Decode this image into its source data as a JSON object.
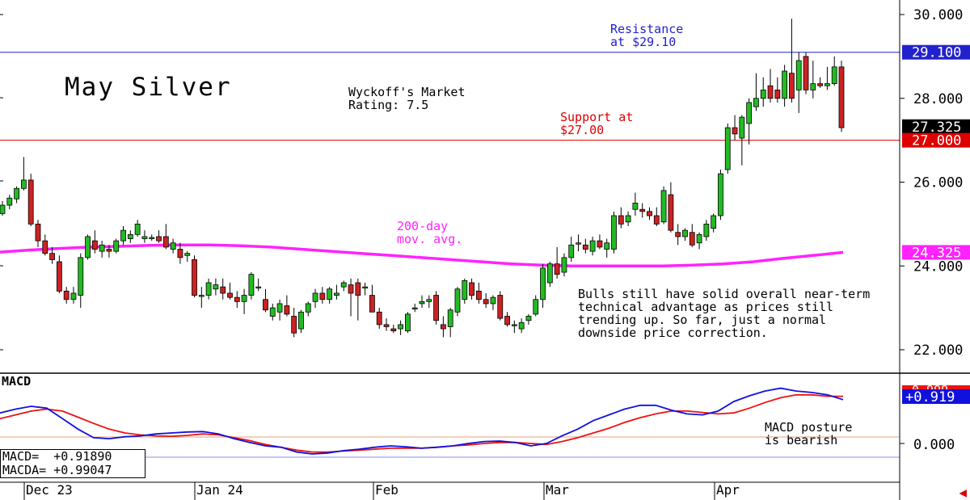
{
  "chart_title": "May Silver",
  "rating_text": "Wyckoff's Market\nRating: 7.5",
  "annotations": {
    "resistance": "Resistance\nat $29.10",
    "support": "Support at\n$27.00",
    "moving_average": "200-day\nmov. avg.",
    "commentary": "Bulls still have solid overall near-term\ntechnical advantage as prices still\ntrending up. So far, just a normal\ndownside price correction.",
    "macd_comment": "MACD posture\nis bearish"
  },
  "macd_panel": {
    "title": "MACD",
    "macd_label": "MACD=  +0.91890",
    "macda_label": "MACDA= +0.99047",
    "axis_tick": "0.000",
    "hidden_tick": "0.999",
    "badge_value": "+0.919"
  },
  "price_badges": {
    "resistance": "29.100",
    "last": "27.325",
    "support": "27.000",
    "moving_average": "24.325"
  },
  "colors": {
    "up_candle": "#22bb22",
    "down_candle": "#cc2222",
    "resistance_line": "#2222cc",
    "support_line": "#dd0000",
    "moving_average": "#ff22ff",
    "macd_line": "#1111dd",
    "macda_line": "#ee1111",
    "last_price_badge": "#000000"
  },
  "chart_data": [
    {
      "type": "candlestick",
      "title": "May Silver",
      "y_ticks": [
        "30.000",
        "28.000",
        "26.000",
        "24.000",
        "22.000"
      ],
      "ylim": [
        21.6,
        30.2
      ],
      "x_ticks": [
        "Dec 23",
        "Jan 24",
        "Feb",
        "Mar",
        "Apr"
      ],
      "resistance": 29.1,
      "support": 27.0,
      "last": 27.325,
      "moving_average": {
        "name": "200-day mov. avg.",
        "values": [
          24.33,
          24.38,
          24.42,
          24.45,
          24.47,
          24.49,
          24.5,
          24.5,
          24.48,
          24.45,
          24.4,
          24.35,
          24.3,
          24.25,
          24.2,
          24.15,
          24.1,
          24.05,
          24.02,
          24.0,
          24.0,
          24.0,
          24.0,
          24.02,
          24.05,
          24.1,
          24.18,
          24.25,
          24.325
        ]
      },
      "ohlc": [
        [
          25.25,
          25.55,
          25.2,
          25.45
        ],
        [
          25.45,
          25.7,
          25.35,
          25.62
        ],
        [
          25.6,
          25.9,
          25.5,
          25.85
        ],
        [
          25.85,
          26.6,
          25.8,
          26.05
        ],
        [
          26.05,
          26.2,
          24.95,
          25.0
        ],
        [
          25.0,
          25.1,
          24.45,
          24.6
        ],
        [
          24.6,
          24.75,
          24.25,
          24.3
        ],
        [
          24.3,
          24.45,
          24.05,
          24.15
        ],
        [
          24.1,
          24.25,
          23.35,
          23.4
        ],
        [
          23.4,
          23.5,
          23.1,
          23.2
        ],
        [
          23.2,
          23.5,
          23.1,
          23.35
        ],
        [
          23.3,
          24.3,
          23.0,
          24.2
        ],
        [
          24.2,
          24.75,
          24.15,
          24.7
        ],
        [
          24.6,
          24.85,
          24.3,
          24.4
        ],
        [
          24.35,
          24.6,
          24.2,
          24.5
        ],
        [
          24.4,
          24.5,
          24.2,
          24.35
        ],
        [
          24.35,
          24.65,
          24.3,
          24.6
        ],
        [
          24.6,
          24.95,
          24.5,
          24.85
        ],
        [
          24.65,
          24.85,
          24.55,
          24.75
        ],
        [
          24.75,
          25.1,
          24.7,
          25.0
        ],
        [
          24.65,
          24.85,
          24.55,
          24.7
        ],
        [
          24.65,
          24.75,
          24.6,
          24.68
        ],
        [
          24.7,
          24.85,
          24.55,
          24.6
        ],
        [
          24.7,
          25.0,
          24.4,
          24.45
        ],
        [
          24.4,
          24.65,
          24.3,
          24.55
        ],
        [
          24.4,
          24.55,
          24.05,
          24.2
        ],
        [
          24.25,
          24.35,
          24.1,
          24.3
        ],
        [
          24.15,
          24.25,
          23.25,
          23.3
        ],
        [
          23.3,
          23.5,
          23.0,
          23.3
        ],
        [
          23.3,
          23.7,
          23.2,
          23.6
        ],
        [
          23.45,
          23.7,
          23.3,
          23.55
        ],
        [
          23.5,
          23.7,
          23.2,
          23.35
        ],
        [
          23.35,
          23.6,
          23.2,
          23.25
        ],
        [
          23.25,
          23.4,
          23.0,
          23.15
        ],
        [
          23.15,
          23.45,
          22.85,
          23.3
        ],
        [
          23.3,
          23.85,
          23.2,
          23.8
        ],
        [
          23.5,
          23.7,
          23.4,
          23.5
        ],
        [
          23.2,
          23.45,
          22.9,
          22.95
        ],
        [
          22.8,
          23.1,
          22.7,
          23.0
        ],
        [
          22.9,
          23.2,
          22.7,
          23.1
        ],
        [
          23.05,
          23.3,
          22.8,
          22.85
        ],
        [
          22.8,
          23.0,
          22.3,
          22.4
        ],
        [
          22.5,
          22.95,
          22.4,
          22.9
        ],
        [
          22.9,
          23.15,
          22.8,
          23.1
        ],
        [
          23.15,
          23.45,
          23.0,
          23.35
        ],
        [
          23.35,
          23.5,
          23.1,
          23.2
        ],
        [
          23.2,
          23.5,
          23.1,
          23.45
        ],
        [
          23.3,
          23.55,
          23.2,
          23.35
        ],
        [
          23.5,
          23.65,
          23.4,
          23.6
        ],
        [
          23.55,
          23.7,
          22.8,
          23.35
        ],
        [
          23.6,
          23.7,
          22.7,
          23.3
        ],
        [
          23.5,
          23.6,
          23.3,
          23.5
        ],
        [
          23.3,
          23.55,
          22.9,
          22.9
        ],
        [
          22.9,
          23.0,
          22.5,
          22.6
        ],
        [
          22.6,
          22.75,
          22.45,
          22.55
        ],
        [
          22.5,
          22.6,
          22.4,
          22.45
        ],
        [
          22.5,
          22.7,
          22.35,
          22.6
        ],
        [
          22.45,
          22.9,
          22.4,
          22.85
        ],
        [
          23.0,
          23.1,
          22.9,
          23.0
        ],
        [
          23.1,
          23.3,
          23.0,
          23.15
        ],
        [
          23.15,
          23.3,
          23.0,
          23.2
        ],
        [
          23.3,
          23.4,
          22.6,
          22.7
        ],
        [
          22.6,
          22.8,
          22.3,
          22.5
        ],
        [
          22.55,
          23.0,
          22.3,
          22.95
        ],
        [
          22.9,
          23.5,
          22.8,
          23.45
        ],
        [
          23.2,
          23.7,
          23.1,
          23.65
        ],
        [
          23.6,
          23.7,
          23.2,
          23.3
        ],
        [
          23.4,
          23.6,
          23.1,
          23.2
        ],
        [
          23.2,
          23.35,
          23.0,
          23.1
        ],
        [
          23.1,
          23.3,
          22.95,
          23.25
        ],
        [
          23.3,
          23.4,
          22.7,
          22.75
        ],
        [
          22.8,
          22.9,
          22.55,
          22.6
        ],
        [
          22.6,
          22.7,
          22.4,
          22.6
        ],
        [
          22.5,
          22.75,
          22.4,
          22.65
        ],
        [
          22.7,
          22.85,
          22.6,
          22.8
        ],
        [
          22.85,
          23.3,
          22.8,
          23.2
        ],
        [
          23.2,
          24.05,
          23.0,
          23.95
        ],
        [
          23.6,
          24.1,
          23.5,
          24.05
        ],
        [
          24.05,
          24.45,
          23.7,
          23.8
        ],
        [
          23.85,
          24.3,
          23.75,
          24.2
        ],
        [
          24.2,
          24.7,
          24.1,
          24.5
        ],
        [
          24.55,
          24.75,
          24.35,
          24.55
        ],
        [
          24.5,
          24.65,
          24.3,
          24.4
        ],
        [
          24.35,
          24.7,
          24.25,
          24.6
        ],
        [
          24.6,
          24.75,
          24.4,
          24.45
        ],
        [
          24.4,
          24.65,
          24.2,
          24.55
        ],
        [
          24.4,
          25.3,
          24.3,
          25.2
        ],
        [
          25.2,
          25.4,
          24.9,
          25.0
        ],
        [
          25.05,
          25.3,
          24.95,
          25.2
        ],
        [
          25.35,
          25.75,
          25.2,
          25.5
        ],
        [
          25.35,
          25.5,
          25.15,
          25.3
        ],
        [
          25.3,
          25.4,
          25.1,
          25.2
        ],
        [
          25.2,
          25.4,
          24.95,
          25.0
        ],
        [
          25.05,
          25.9,
          25.0,
          25.8
        ],
        [
          25.7,
          26.0,
          24.8,
          24.85
        ],
        [
          24.8,
          25.0,
          24.5,
          24.7
        ],
        [
          24.7,
          24.9,
          24.6,
          24.85
        ],
        [
          24.8,
          25.0,
          24.45,
          24.5
        ],
        [
          24.55,
          24.8,
          24.4,
          24.75
        ],
        [
          24.7,
          25.1,
          24.6,
          25.0
        ],
        [
          24.9,
          25.25,
          24.8,
          25.2
        ],
        [
          25.2,
          26.3,
          25.1,
          26.2
        ],
        [
          26.3,
          27.4,
          26.2,
          27.3
        ],
        [
          27.3,
          27.6,
          27.0,
          27.15
        ],
        [
          27.05,
          27.6,
          26.4,
          27.55
        ],
        [
          27.4,
          28.0,
          26.9,
          27.9
        ],
        [
          27.8,
          28.6,
          27.7,
          28.0
        ],
        [
          28.0,
          28.5,
          27.8,
          28.2
        ],
        [
          28.3,
          28.7,
          27.9,
          28.0
        ],
        [
          28.2,
          28.5,
          27.9,
          28.0
        ],
        [
          28.0,
          28.8,
          27.8,
          28.65
        ],
        [
          28.6,
          29.9,
          27.9,
          28.0
        ],
        [
          28.2,
          29.1,
          27.65,
          28.9
        ],
        [
          29.0,
          29.1,
          28.1,
          28.2
        ],
        [
          28.2,
          28.9,
          28.0,
          28.35
        ],
        [
          28.35,
          28.5,
          28.25,
          28.3
        ],
        [
          28.3,
          28.75,
          28.2,
          28.35
        ],
        [
          28.35,
          29.0,
          28.3,
          28.75
        ],
        [
          28.75,
          28.9,
          27.2,
          27.3
        ]
      ]
    },
    {
      "type": "line",
      "title": "MACD",
      "series": [
        {
          "name": "MACD",
          "values": [
            0.64,
            0.72,
            0.78,
            0.74,
            0.52,
            0.3,
            0.12,
            0.1,
            0.14,
            0.16,
            0.2,
            0.22,
            0.24,
            0.25,
            0.2,
            0.1,
            0.02,
            -0.05,
            -0.08,
            -0.18,
            -0.22,
            -0.2,
            -0.15,
            -0.12,
            -0.08,
            -0.05,
            -0.07,
            -0.1,
            -0.08,
            -0.05,
            0.0,
            0.04,
            0.05,
            0.02,
            -0.05,
            0.0,
            0.16,
            0.3,
            0.48,
            0.6,
            0.72,
            0.8,
            0.8,
            0.7,
            0.62,
            0.6,
            0.68,
            0.88,
            1.0,
            1.1,
            1.16,
            1.1,
            1.07,
            1.02,
            0.919
          ]
        },
        {
          "name": "MACDA",
          "values": [
            0.52,
            0.6,
            0.68,
            0.72,
            0.68,
            0.55,
            0.42,
            0.3,
            0.22,
            0.18,
            0.16,
            0.15,
            0.17,
            0.2,
            0.18,
            0.12,
            0.06,
            -0.02,
            -0.08,
            -0.14,
            -0.18,
            -0.18,
            -0.16,
            -0.14,
            -0.12,
            -0.1,
            -0.1,
            -0.1,
            -0.08,
            -0.05,
            -0.03,
            0.0,
            0.02,
            0.02,
            0.0,
            -0.02,
            0.04,
            0.12,
            0.22,
            0.32,
            0.44,
            0.54,
            0.62,
            0.68,
            0.68,
            0.65,
            0.62,
            0.64,
            0.74,
            0.86,
            0.96,
            1.02,
            1.02,
            0.99,
            0.99047
          ]
        }
      ]
    }
  ]
}
